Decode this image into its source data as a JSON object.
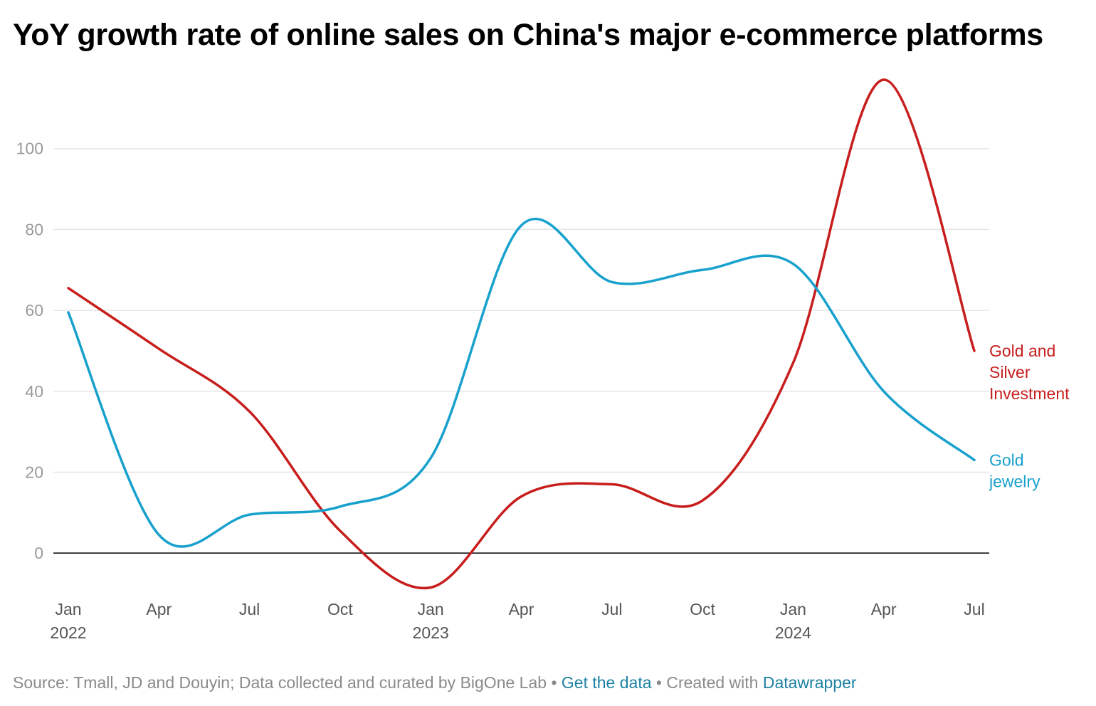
{
  "title": "YoY growth rate of online sales on China's major e-commerce platforms",
  "footer": {
    "source": "Source: Tmall, JD and Douyin; Data collected and curated by BigOne Lab",
    "separator": " • ",
    "get_data": "Get the data",
    "created_with": "Created with ",
    "tool": "Datawrapper"
  },
  "colors": {
    "gold_silver": "#c71e1d",
    "gold_jewelry": "#18a1cd",
    "gridline": "#e6e6e6",
    "zero_line": "#000000",
    "link": "#1d81a2"
  },
  "chart_data": {
    "type": "line",
    "title": "YoY growth rate of online sales on China's major e-commerce platforms",
    "xlabel": "",
    "ylabel": "",
    "ylim": [
      -10,
      120
    ],
    "y_ticks": [
      "0",
      "20",
      "40",
      "60",
      "80",
      "100"
    ],
    "x_ticks": [
      {
        "month": "2022-01",
        "label": "Jan",
        "sublabel": "2022"
      },
      {
        "month": "2022-04",
        "label": "Apr",
        "sublabel": ""
      },
      {
        "month": "2022-07",
        "label": "Jul",
        "sublabel": ""
      },
      {
        "month": "2022-10",
        "label": "Oct",
        "sublabel": ""
      },
      {
        "month": "2023-01",
        "label": "Jan",
        "sublabel": "2023"
      },
      {
        "month": "2023-04",
        "label": "Apr",
        "sublabel": ""
      },
      {
        "month": "2023-07",
        "label": "Jul",
        "sublabel": ""
      },
      {
        "month": "2023-10",
        "label": "Oct",
        "sublabel": ""
      },
      {
        "month": "2024-01",
        "label": "Jan",
        "sublabel": "2024"
      },
      {
        "month": "2024-04",
        "label": "Apr",
        "sublabel": ""
      },
      {
        "month": "2024-07",
        "label": "Jul",
        "sublabel": ""
      }
    ],
    "x": [
      "2022-01",
      "2022-04",
      "2022-07",
      "2022-10",
      "2023-01",
      "2023-04",
      "2023-07",
      "2023-10",
      "2024-01",
      "2024-04",
      "2024-07"
    ],
    "series": [
      {
        "name": "Gold and Silver Investment",
        "label_lines": [
          "Gold and",
          "Silver",
          "Investment"
        ],
        "color": "#c71e1d",
        "values": [
          65.5,
          50.5,
          35,
          5.5,
          -8.5,
          14,
          17,
          13,
          47,
          117,
          50
        ]
      },
      {
        "name": "Gold jewelry",
        "label_lines": [
          "Gold",
          "jewelry"
        ],
        "color": "#18a1cd",
        "values": [
          59.5,
          4.5,
          9.5,
          11.5,
          23.5,
          81,
          67,
          70,
          71.5,
          40,
          23
        ]
      }
    ],
    "grid": true,
    "legend": "direct labels at line ends (right)"
  }
}
